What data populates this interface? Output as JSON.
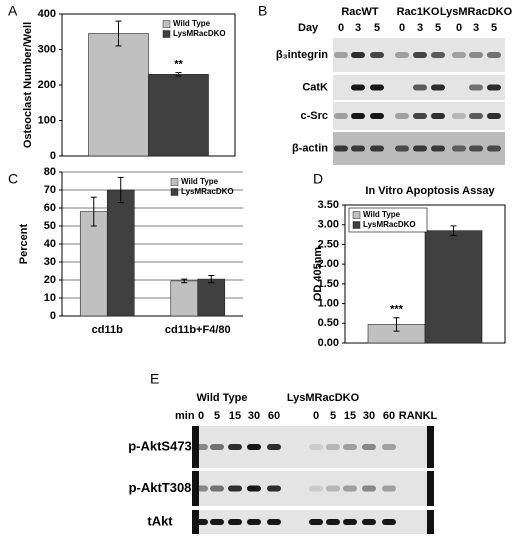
{
  "chart_data": [
    {
      "type": "bar",
      "panel": "A",
      "ylabel": "Osteoclast Number/Well",
      "categories": [
        null
      ],
      "series": [
        {
          "name": "Wild Type",
          "color": "#c0c0c0",
          "values": [
            345
          ],
          "errors": [
            35
          ]
        },
        {
          "name": "LysMRacDKO",
          "color": "#404040",
          "values": [
            230
          ],
          "errors": [
            5
          ]
        }
      ],
      "annotation": "**",
      "ylim": [
        0,
        400
      ],
      "yticks": [
        0,
        100,
        200,
        300,
        400
      ],
      "grid": false,
      "legend": "top-right"
    },
    {
      "type": "bar",
      "panel": "C",
      "ylabel": "Percent",
      "categories": [
        "cd11b",
        "cd11b+F4/80"
      ],
      "series": [
        {
          "name": "Wild Type",
          "color": "#c0c0c0",
          "values": [
            58,
            19.5
          ],
          "errors": [
            8,
            1
          ]
        },
        {
          "name": "LysMRacDKO",
          "color": "#404040",
          "values": [
            70,
            20.5
          ],
          "errors": [
            7,
            2
          ]
        }
      ],
      "ylim": [
        0,
        80
      ],
      "yticks": [
        0,
        10,
        20,
        30,
        40,
        50,
        60,
        70,
        80
      ],
      "grid": true,
      "legend": "top-right"
    },
    {
      "type": "bar",
      "panel": "D",
      "title": "In Vitro Apoptosis Assay",
      "ylabel": "OD 405nm",
      "categories": [
        null
      ],
      "series": [
        {
          "name": "Wild Type",
          "color": "#c0c0c0",
          "values": [
            0.47
          ],
          "errors": [
            0.17
          ]
        },
        {
          "name": "LysMRacDKO",
          "color": "#404040",
          "values": [
            2.85
          ],
          "errors": [
            0.12
          ]
        }
      ],
      "annotation": "***",
      "ylim": [
        0,
        3.5
      ],
      "yticks": [
        {
          "value": 0,
          "label": "0.00"
        },
        {
          "value": 0.5,
          "label": "0.50"
        },
        {
          "value": 1,
          "label": "1.00"
        },
        {
          "value": 1.5,
          "label": "1.50"
        },
        {
          "value": 2,
          "label": "2.00"
        },
        {
          "value": 2.5,
          "label": "2.50"
        },
        {
          "value": 3,
          "label": "3.00"
        },
        {
          "value": 3.5,
          "label": "3.50"
        }
      ],
      "grid": false,
      "legend": "top-left"
    }
  ],
  "panel_b": {
    "panel": "B",
    "groups": [
      "RacWT",
      "Rac1KO",
      "LysMRacDKO"
    ],
    "lane_title": "Day",
    "lanes": [
      "0",
      "3",
      "5",
      "0",
      "3",
      "5",
      "0",
      "3",
      "5"
    ],
    "rows": [
      "β₃integrin",
      "CatK",
      "c-Src",
      "β-actin"
    ]
  },
  "panel_e": {
    "panel": "E",
    "groups": [
      "Wild Type",
      "LysMRacDKO"
    ],
    "lane_title": "min",
    "lanes": [
      "0",
      "5",
      "15",
      "30",
      "60",
      "0",
      "5",
      "15",
      "30",
      "60"
    ],
    "end_lane": "RANKL",
    "rows": [
      "p-AktS473",
      "p-AktT308",
      "tAkt"
    ]
  }
}
